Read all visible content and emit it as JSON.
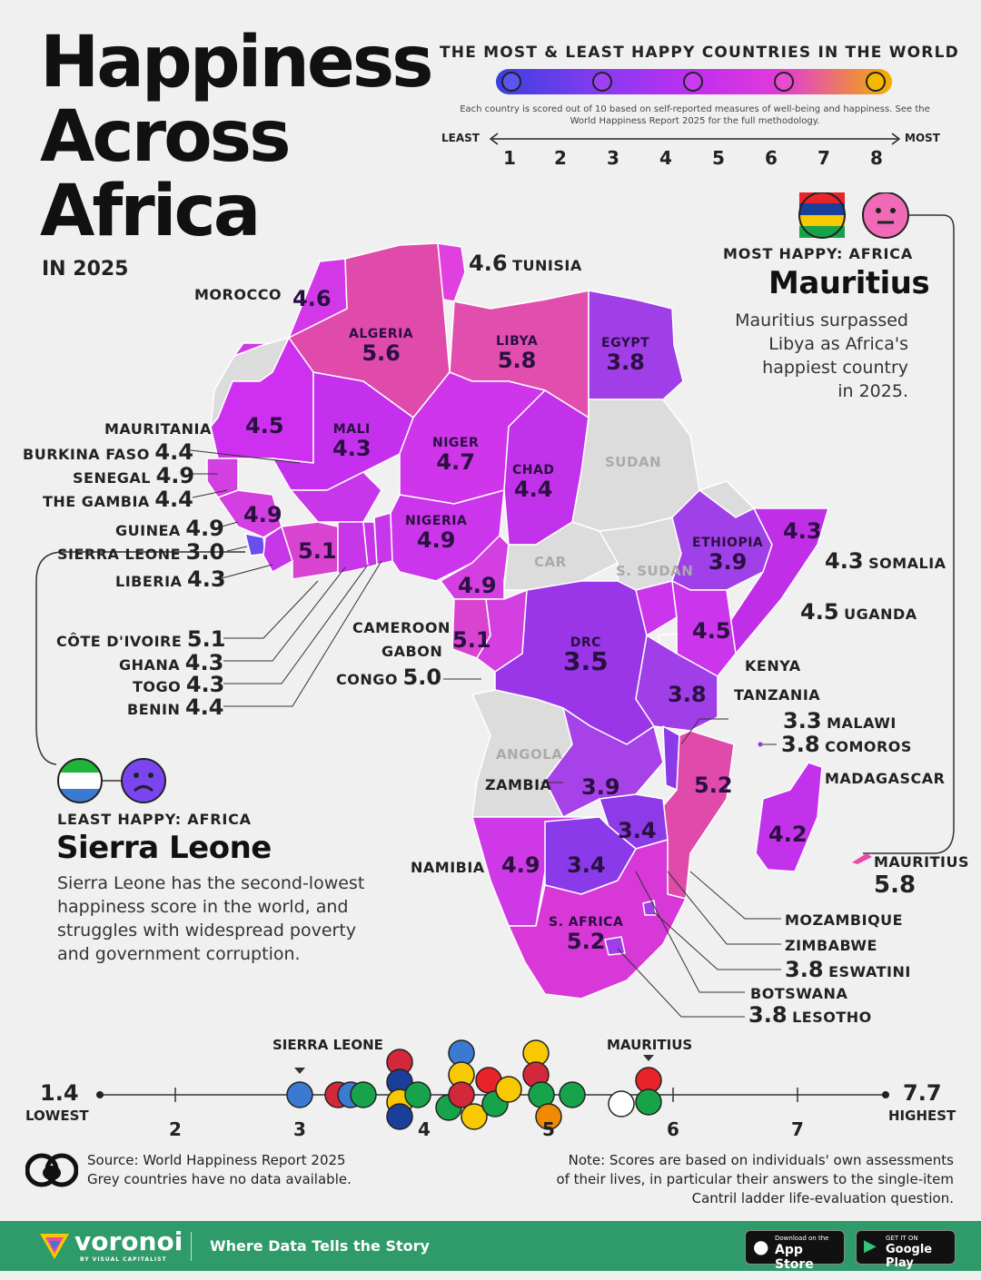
{
  "title": {
    "line1": "Happiness",
    "line2": "Across",
    "line3": "Africa",
    "subtitle": "IN 2025"
  },
  "legend": {
    "heading": "THE MOST & LEAST HAPPY COUNTRIES IN THE WORLD",
    "note": "Each country is scored out of 10 based on self-reported measures of well-being and happiness. See the World Happiness Report 2025 for the full methodology.",
    "least_label": "LEAST",
    "most_label": "MOST",
    "ticks": [
      "1",
      "2",
      "3",
      "4",
      "5",
      "6",
      "7",
      "8"
    ],
    "colors": {
      "low": "#3b3fe0",
      "mid_low": "#8a3bf0",
      "mid": "#c02ef0",
      "mid_high": "#e23ad8",
      "high": "#f3b000"
    }
  },
  "most_happy": {
    "heading": "MOST HAPPY: AFRICA",
    "name": "Mauritius",
    "text_lines": [
      "Mauritius surpassed",
      "Libya as Africa's",
      "happiest country",
      "in 2025."
    ]
  },
  "least_happy": {
    "heading": "LEAST HAPPY: AFRICA",
    "name": "Sierra Leone",
    "text_lines": [
      "Sierra Leone has the second-lowest",
      "happiness score in the world, and",
      "struggles with widespread poverty",
      "and government corruption."
    ]
  },
  "countries": {
    "tunisia": {
      "name": "TUNISIA",
      "score": "4.6"
    },
    "morocco": {
      "name": "MOROCCO",
      "score": "4.6"
    },
    "algeria": {
      "name": "ALGERIA",
      "score": "5.6"
    },
    "libya": {
      "name": "LIBYA",
      "score": "5.8"
    },
    "egypt": {
      "name": "EGYPT",
      "score": "3.8"
    },
    "mauritania": {
      "name": "MAURITANIA",
      "score": "4.5"
    },
    "mali": {
      "name": "MALI",
      "score": "4.3"
    },
    "niger": {
      "name": "NIGER",
      "score": "4.7"
    },
    "chad": {
      "name": "CHAD",
      "score": "4.4"
    },
    "burkina_faso": {
      "name": "BURKINA FASO",
      "score": "4.4"
    },
    "senegal": {
      "name": "SENEGAL",
      "score": "4.9"
    },
    "the_gambia": {
      "name": "THE GAMBIA",
      "score": "4.4"
    },
    "guinea": {
      "name": "GUINEA",
      "score": "4.9"
    },
    "sierra_leone": {
      "name": "SIERRA LEONE",
      "score": "3.0"
    },
    "liberia": {
      "name": "LIBERIA",
      "score": "4.3"
    },
    "nigeria": {
      "name": "NIGERIA",
      "score": "4.9"
    },
    "cote_divoire": {
      "name": "CÔTE D'IVOIRE",
      "score": "5.1"
    },
    "ghana": {
      "name": "GHANA",
      "score": "4.3"
    },
    "togo": {
      "name": "TOGO",
      "score": "4.3"
    },
    "benin": {
      "name": "BENIN",
      "score": "4.4"
    },
    "cameroon": {
      "name": "CAMEROON",
      "score": "4.9"
    },
    "gabon": {
      "name": "GABON",
      "score": "5.1"
    },
    "congo": {
      "name": "CONGO",
      "score": "5.0"
    },
    "ethiopia": {
      "name": "ETHIOPIA",
      "score": "3.9"
    },
    "somalia": {
      "name": "SOMALIA",
      "score": "4.3"
    },
    "uganda": {
      "name": "UGANDA",
      "score": "4.5"
    },
    "kenya": {
      "name": "KENYA",
      "score": "4.5"
    },
    "drc": {
      "name": "DRC",
      "score": "3.5"
    },
    "tanzania": {
      "name": "TANZANIA",
      "score": "3.8"
    },
    "malawi": {
      "name": "MALAWI",
      "score": "3.3"
    },
    "comoros": {
      "name": "COMOROS",
      "score": "3.8"
    },
    "madagascar": {
      "name": "MADAGASCAR",
      "score": "4.2"
    },
    "zambia": {
      "name": "ZAMBIA",
      "score": "3.9"
    },
    "mozambique": {
      "name": "MOZAMBIQUE",
      "score": "5.2"
    },
    "zimbabwe": {
      "name": "ZIMBABWE",
      "score": "3.4"
    },
    "namibia": {
      "name": "NAMIBIA",
      "score": "4.9"
    },
    "botswana": {
      "name": "BOTSWANA",
      "score": "3.4"
    },
    "s_africa": {
      "name": "S. AFRICA",
      "score": "5.2"
    },
    "eswatini": {
      "name": "ESWATINI",
      "score": "3.8"
    },
    "lesotho": {
      "name": "LESOTHO",
      "score": "3.8"
    },
    "mauritius": {
      "name": "MAURITIUS",
      "score": "5.8"
    }
  },
  "no_data": {
    "sudan": "SUDAN",
    "s_sudan": "S. SUDAN",
    "car": "CAR",
    "angola": "ANGOLA"
  },
  "axis": {
    "lowest_value": "1.4",
    "lowest_label": "LOWEST",
    "highest_value": "7.7",
    "highest_label": "HIGHEST",
    "ticks": [
      "2",
      "3",
      "4",
      "5",
      "6",
      "7"
    ],
    "marker_sl": "SIERRA LEONE",
    "marker_mu": "MAURITIUS"
  },
  "source": {
    "line1": "Source: World Happiness Report 2025",
    "line2": "Grey countries have no data available."
  },
  "note": {
    "line1": "Note: Scores are based on individuals' own assessments",
    "line2": "of their lives, in particular their answers to the single-item",
    "line3": "Cantril ladder life-evaluation question."
  },
  "footer": {
    "brand": "voronoi",
    "brand_sub": "BY VISUAL CAPITALIST",
    "tagline": "Where Data Tells the Story",
    "app_store_small": "Download on the",
    "app_store": "App Store",
    "google_small": "GET IT ON",
    "google": "Google Play"
  }
}
